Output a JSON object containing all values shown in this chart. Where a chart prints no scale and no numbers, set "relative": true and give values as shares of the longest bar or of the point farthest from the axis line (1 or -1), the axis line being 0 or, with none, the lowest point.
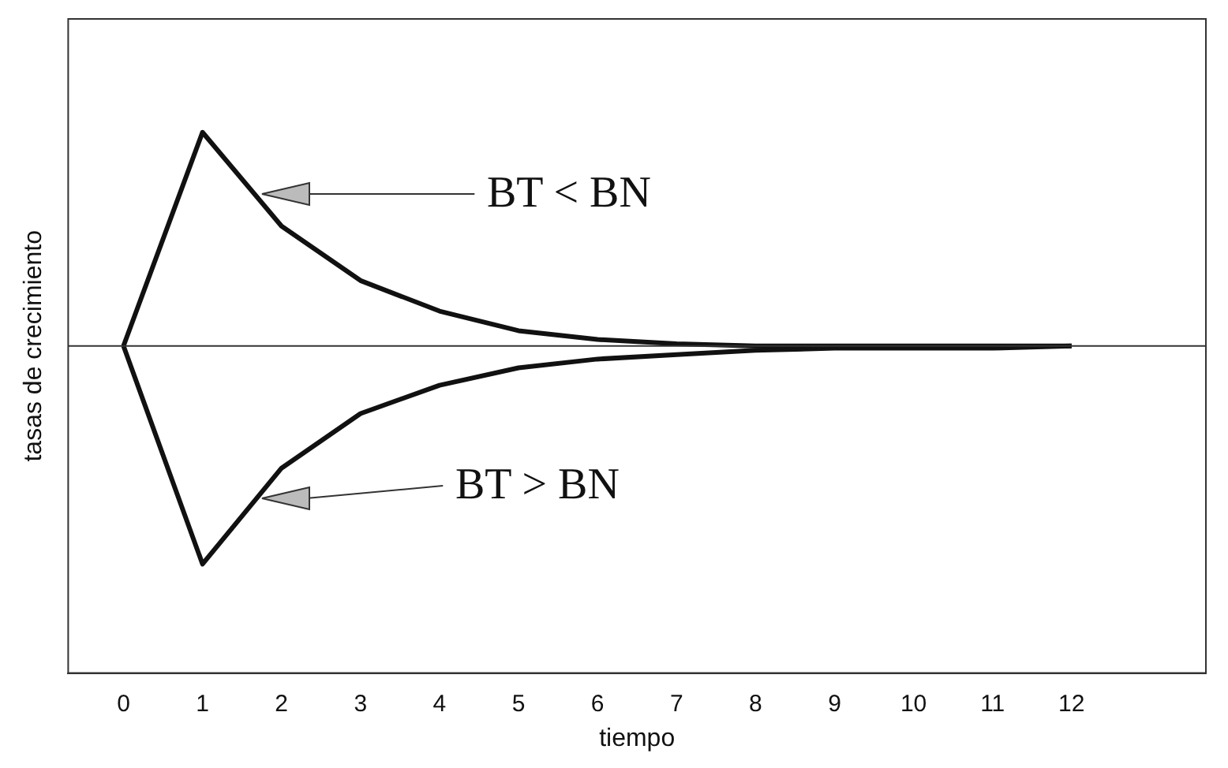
{
  "chart_data": {
    "type": "line",
    "relative": true,
    "xlabel": "tiempo",
    "ylabel": "tasas de crecimiento",
    "x": [
      0,
      1,
      2,
      3,
      4,
      5,
      6,
      7,
      8,
      9,
      10,
      11,
      12
    ],
    "series": [
      {
        "color": "#111111",
        "values": [
          0,
          0.98,
          0.55,
          0.3,
          0.16,
          0.07,
          0.03,
          0.01,
          0,
          0,
          0,
          0,
          0
        ]
      },
      {
        "color": "#111111",
        "values": [
          0,
          -1,
          -0.56,
          -0.31,
          -0.18,
          -0.1,
          -0.06,
          -0.04,
          -0.02,
          -0.01,
          -0.01,
          -0.01,
          0
        ]
      }
    ],
    "xlim": [
      -0.7,
      13.7
    ],
    "xticks": [
      0,
      1,
      2,
      3,
      4,
      5,
      6,
      7,
      8,
      9,
      10,
      11,
      12
    ],
    "annotations": [
      "BT < BN",
      "BT > BN"
    ],
    "grid": false,
    "legend": false,
    "marker": "none",
    "line_style": "solid"
  }
}
